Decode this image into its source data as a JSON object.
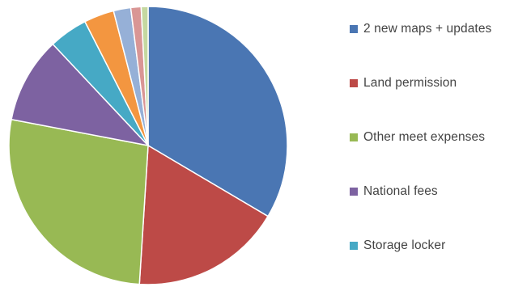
{
  "chart_data": {
    "type": "pie",
    "start_angle_deg": 0,
    "direction": "clockwise",
    "slices": [
      {
        "label": "2 new maps + updates",
        "value": 33.5,
        "color": "#4a76b3"
      },
      {
        "label": "Land permission",
        "value": 17.5,
        "color": "#bd4a47"
      },
      {
        "label": "Other meet expenses",
        "value": 27.0,
        "color": "#98b954"
      },
      {
        "label": "National fees",
        "value": 10.0,
        "color": "#7d62a1"
      },
      {
        "label": "Storage locker",
        "value": 4.5,
        "color": "#46a9c5"
      },
      {
        "label": "",
        "value": 3.5,
        "color": "#f39640"
      },
      {
        "label": "",
        "value": 2.0,
        "color": "#96b0d7"
      },
      {
        "label": "",
        "value": 1.2,
        "color": "#d99695"
      },
      {
        "label": "",
        "value": 0.8,
        "color": "#c5d8a0"
      }
    ],
    "legend": {
      "placement": "right",
      "items": [
        {
          "label": "2 new maps + updates",
          "color": "#4a76b3"
        },
        {
          "label": "Land permission",
          "color": "#bd4a47"
        },
        {
          "label": "Other meet expenses",
          "color": "#98b954"
        },
        {
          "label": "National fees",
          "color": "#7d62a1"
        },
        {
          "label": "Storage locker",
          "color": "#46a9c5"
        }
      ]
    }
  }
}
